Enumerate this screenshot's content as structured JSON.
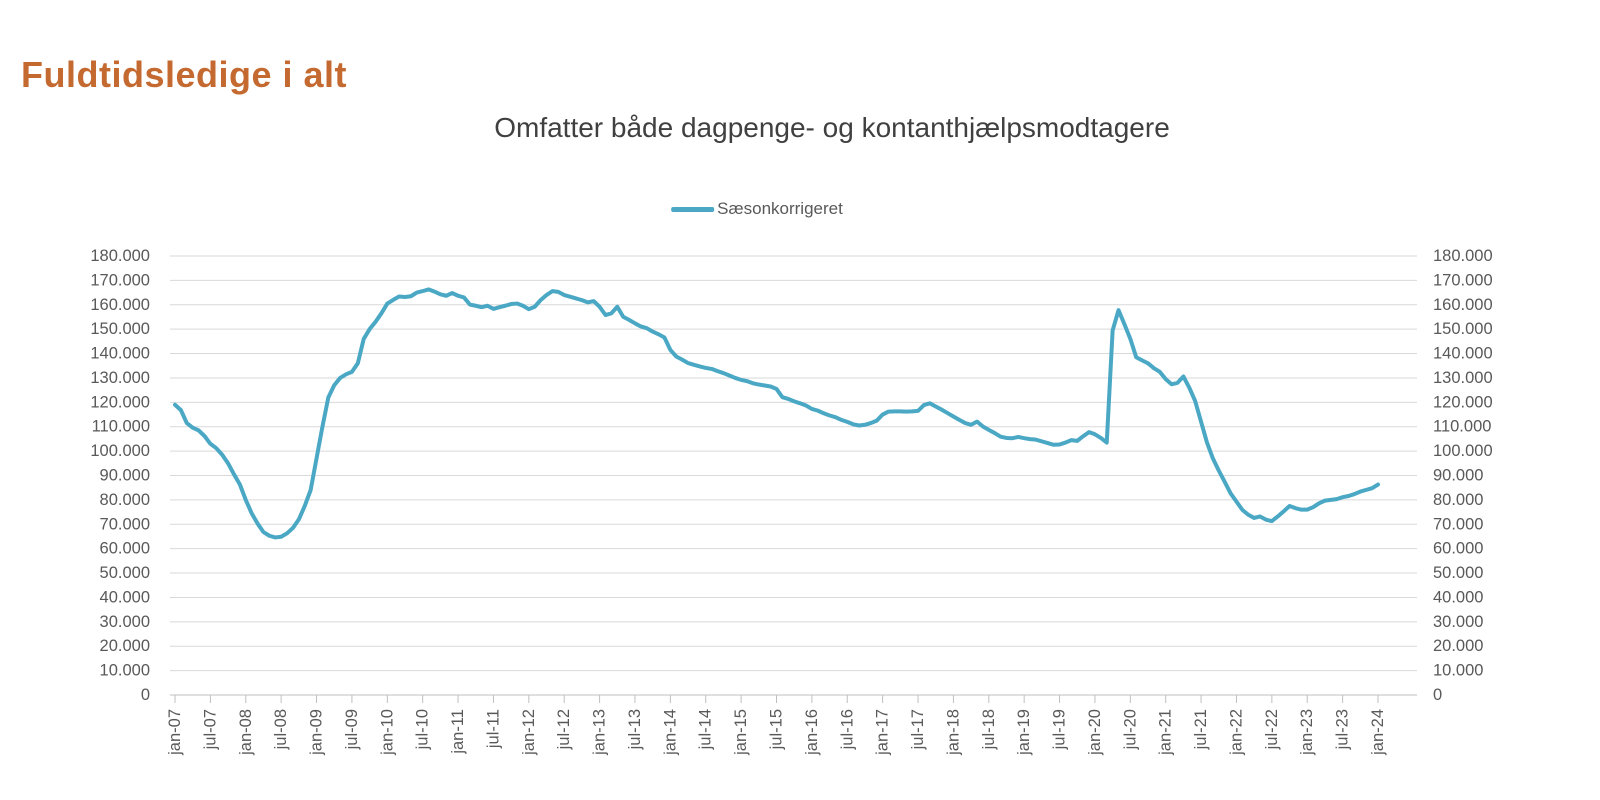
{
  "page": {
    "title": "Fuldtidsledige i alt"
  },
  "chart": {
    "subtitle": "Omfatter både dagpenge- og kontanthjælpsmodtagere",
    "legend": {
      "label": "Sæsonkorrigeret"
    },
    "colors": {
      "title": "#C4692F",
      "subtitle_text": "#404040",
      "series_line": "#4AA8C5",
      "axis_text": "#595959",
      "gridline": "#D9D9D9",
      "axis_line": "#BFBFBF"
    }
  },
  "chart_data": {
    "type": "line",
    "title": "Omfatter både dagpenge- og kontanthjælpsmodtagere",
    "frequency": "monthly",
    "x_start": "jan-07",
    "x_end": "jan-24",
    "x_tick_labels": [
      "jan-07",
      "jul-07",
      "jan-08",
      "jul-08",
      "jan-09",
      "jul-09",
      "jan-10",
      "jul-10",
      "jan-11",
      "jul-11",
      "jan-12",
      "jul-12",
      "jan-13",
      "jul-13",
      "jan-14",
      "jul-14",
      "jan-15",
      "jul-15",
      "jan-16",
      "jul-16",
      "jan-17",
      "jul-17",
      "jan-18",
      "jul-18",
      "jan-19",
      "jul-19",
      "jan-20",
      "jul-20",
      "jan-21",
      "jul-21",
      "jan-22",
      "jul-22",
      "jan-23",
      "jul-23",
      "jan-24"
    ],
    "ylim": [
      0,
      180000
    ],
    "y_tick_step": 10000,
    "y_tick_labels": [
      "0",
      "10.000",
      "20.000",
      "30.000",
      "40.000",
      "50.000",
      "60.000",
      "70.000",
      "80.000",
      "90.000",
      "100.000",
      "110.000",
      "120.000",
      "130.000",
      "140.000",
      "150.000",
      "160.000",
      "170.000",
      "180.000"
    ],
    "grid": true,
    "legend_position": "top-center",
    "series": [
      {
        "name": "Sæsonkorrigeret",
        "color": "#4AA8C5",
        "values": [
          119000,
          116800,
          111500,
          109600,
          108500,
          106200,
          103000,
          101200,
          98500,
          95000,
          90500,
          86300,
          80000,
          74500,
          70300,
          66800,
          65300,
          64600,
          64900,
          66300,
          68500,
          72000,
          77500,
          84000,
          97000,
          110000,
          122000,
          127000,
          130000,
          131500,
          132500,
          136000,
          146000,
          150000,
          153000,
          156500,
          160500,
          162000,
          163400,
          163200,
          163500,
          165000,
          165600,
          166300,
          165400,
          164300,
          163700,
          164800,
          163700,
          163000,
          160100,
          159600,
          159000,
          159600,
          158300,
          159000,
          159600,
          160300,
          160500,
          159600,
          158200,
          159200,
          161900,
          164000,
          165600,
          165300,
          164000,
          163300,
          162600,
          161900,
          161000,
          161500,
          159200,
          155800,
          156500,
          159200,
          155100,
          153800,
          152400,
          151100,
          150400,
          149000,
          147900,
          146600,
          141500,
          138800,
          137500,
          136100,
          135400,
          134700,
          134100,
          133700,
          132800,
          132000,
          131000,
          130000,
          129200,
          128700,
          127800,
          127300,
          126900,
          126500,
          125500,
          122100,
          121400,
          120400,
          119600,
          118700,
          117300,
          116600,
          115500,
          114600,
          113900,
          112800,
          112000,
          111000,
          110500,
          110800,
          111500,
          112500,
          115000,
          116200,
          116300,
          116300,
          116200,
          116300,
          116500,
          118900,
          119600,
          118300,
          117000,
          115600,
          114200,
          112800,
          111500,
          110800,
          112100,
          110100,
          108700,
          107400,
          105900,
          105400,
          105300,
          105800,
          105300,
          104900,
          104700,
          104000,
          103300,
          102600,
          102700,
          103500,
          104500,
          104200,
          106100,
          107800,
          106900,
          105400,
          103500,
          149500,
          157800,
          152000,
          146000,
          138500,
          137200,
          136000,
          134000,
          132500,
          129500,
          127400,
          128000,
          130600,
          126000,
          120500,
          112000,
          103500,
          97000,
          92000,
          87400,
          82700,
          79300,
          75900,
          73900,
          72600,
          73200,
          71900,
          71300,
          73200,
          75300,
          77500,
          76600,
          76000,
          76000,
          77000,
          78600,
          79700,
          80000,
          80300,
          81100,
          81600,
          82400,
          83400,
          84100,
          84800,
          86300
        ]
      }
    ]
  }
}
